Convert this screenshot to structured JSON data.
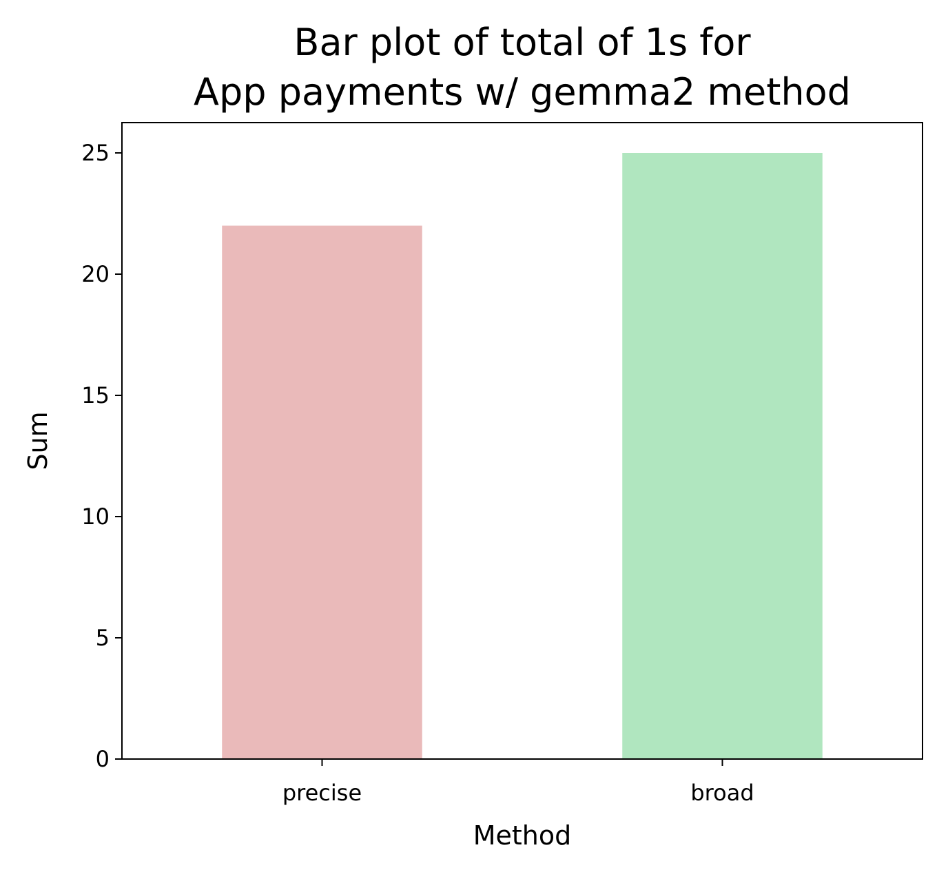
{
  "chart_data": {
    "type": "bar",
    "title": [
      "Bar plot of total of 1s for",
      "App payments w/ gemma2 method"
    ],
    "xlabel": "Method",
    "ylabel": "Sum",
    "categories": [
      "precise",
      "broad"
    ],
    "values": [
      22,
      25
    ],
    "colors": [
      "#eababa",
      "#b0e6bf"
    ],
    "ylim": [
      0,
      26.25
    ],
    "yticks": [
      0,
      5,
      10,
      15,
      20,
      25
    ],
    "grid": false,
    "legend": "none"
  }
}
